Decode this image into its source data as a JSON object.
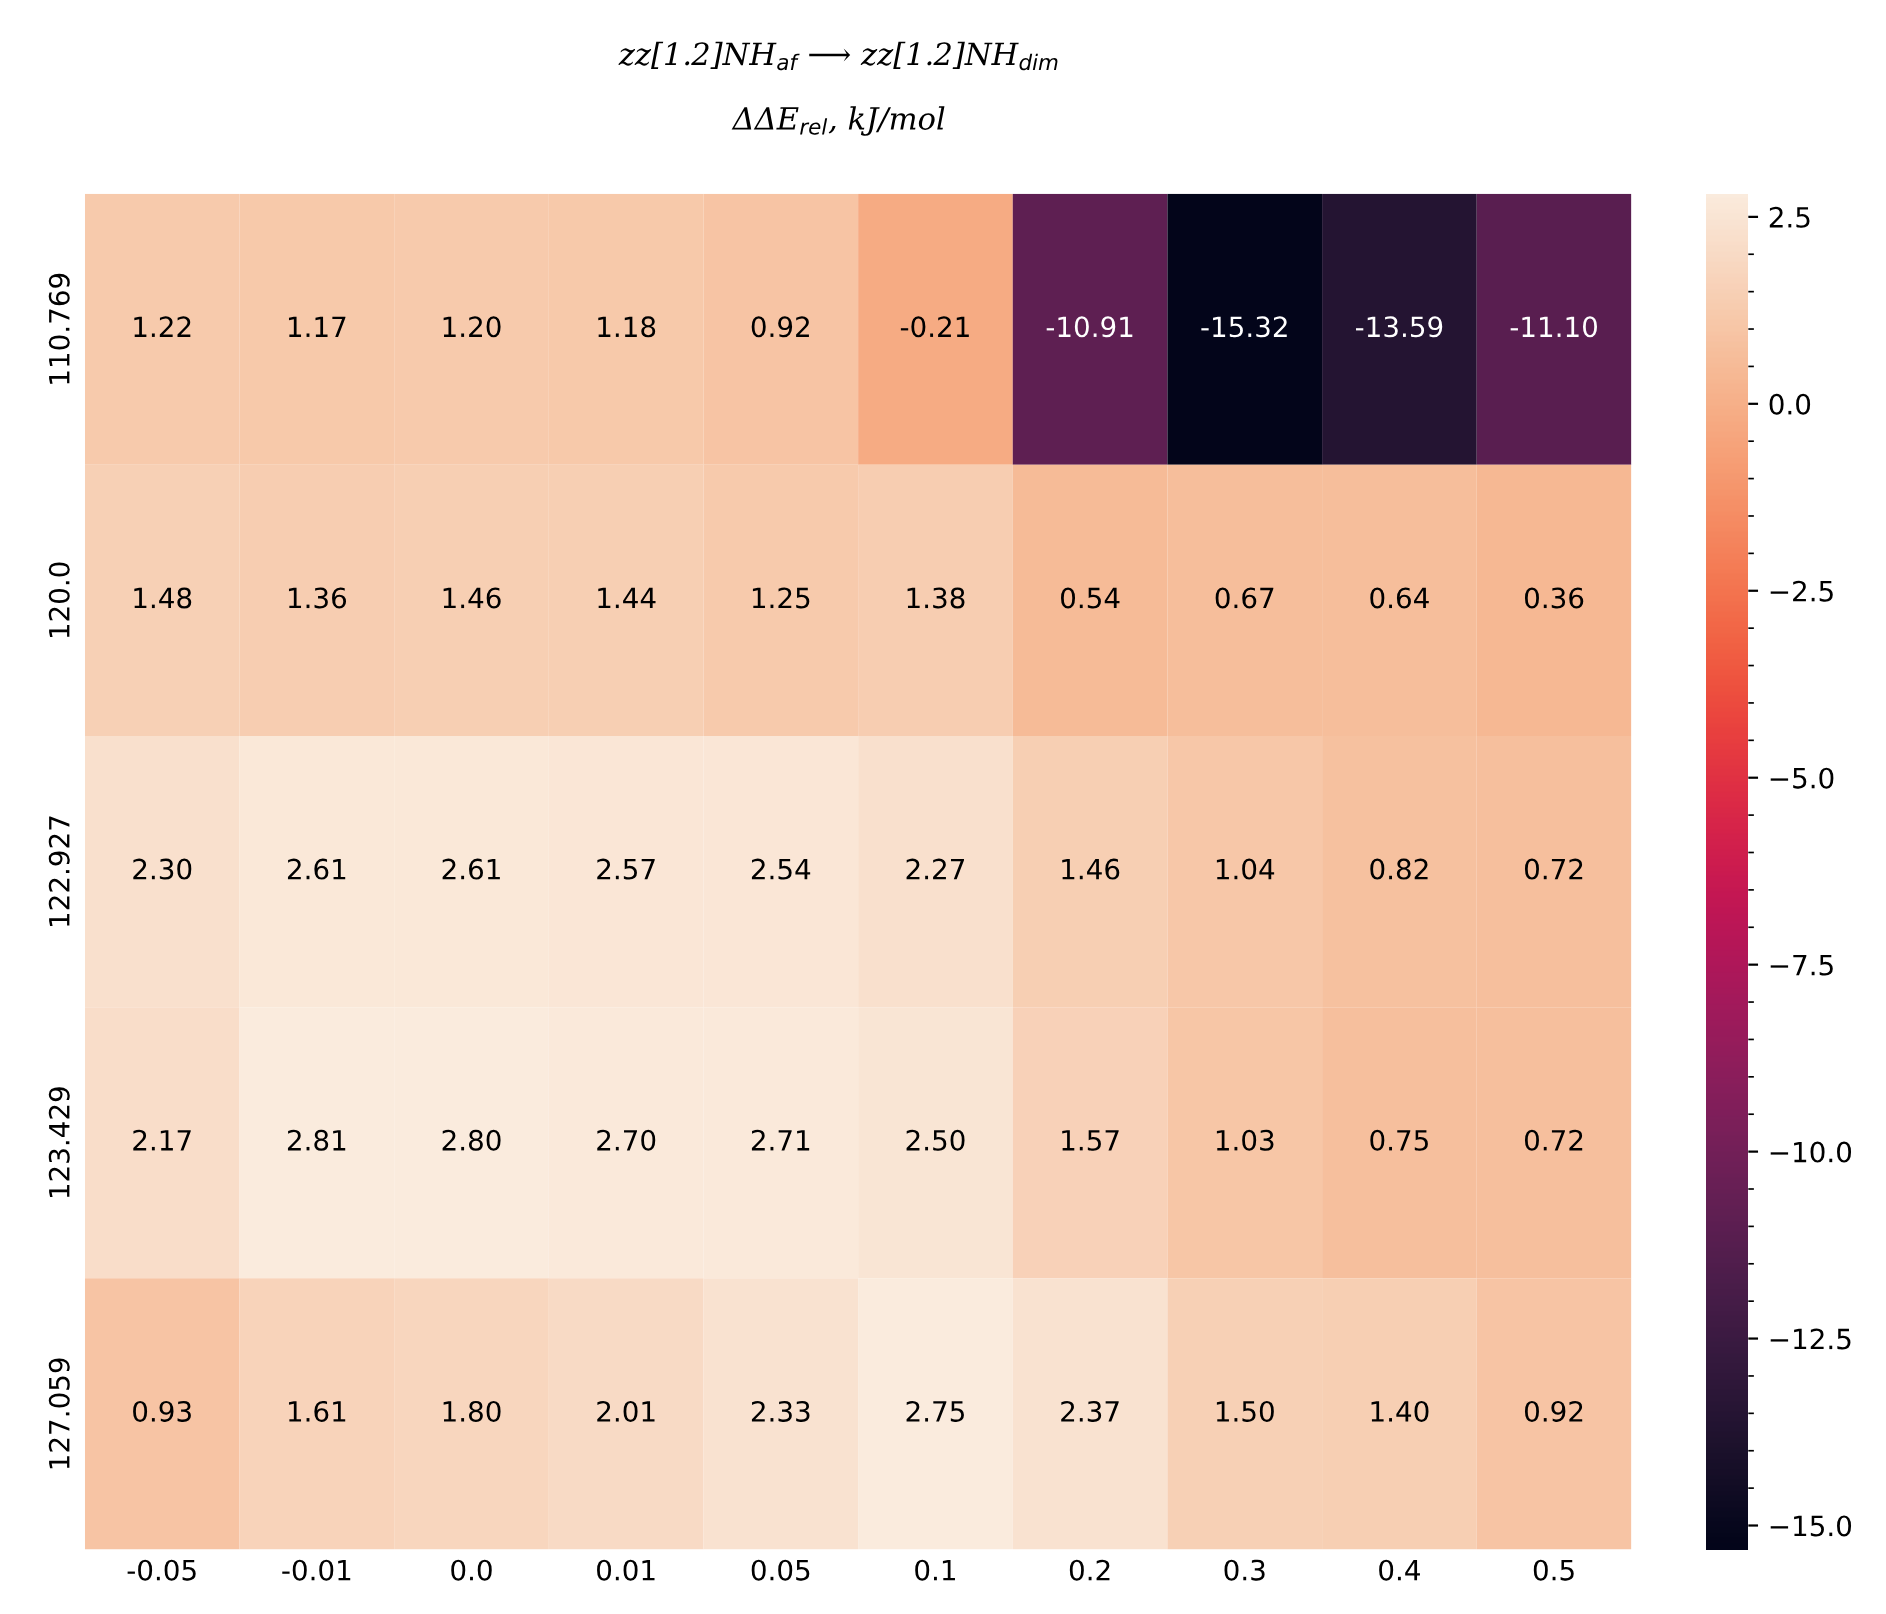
{
  "chart_data": {
    "type": "heatmap",
    "title": "zz[1.2]NH$_{af}$ ⟶ zz[1.2]NH$_{dim}$",
    "subtitle": "ΔΔE$_{rel}$, kJ/mol",
    "categories": [
      "-0.05",
      "-0.01",
      "0.0",
      "0.01",
      "0.05",
      "0.1",
      "0.2",
      "0.3",
      "0.4",
      "0.5"
    ],
    "y_categories": [
      "110.769",
      "120.0",
      "122.927",
      "123.429",
      "127.059"
    ],
    "cells": [
      [
        1.22,
        1.17,
        1.2,
        1.18,
        0.92,
        -0.21,
        -10.91,
        -15.32,
        -13.59,
        -11.1
      ],
      [
        1.48,
        1.36,
        1.46,
        1.44,
        1.25,
        1.38,
        0.54,
        0.67,
        0.64,
        0.36
      ],
      [
        2.3,
        2.61,
        2.61,
        2.57,
        2.54,
        2.27,
        1.46,
        1.04,
        0.82,
        0.72
      ],
      [
        2.17,
        2.81,
        2.8,
        2.7,
        2.71,
        2.5,
        1.57,
        1.03,
        0.75,
        0.72
      ],
      [
        0.93,
        1.61,
        1.8,
        2.01,
        2.33,
        2.75,
        2.37,
        1.5,
        1.4,
        0.92
      ]
    ],
    "cell_labels": [
      [
        "1.22",
        "1.17",
        "1.20",
        "1.18",
        "0.92",
        "-0.21",
        "-10.91",
        "-15.32",
        "-13.59",
        "-11.10"
      ],
      [
        "1.48",
        "1.36",
        "1.46",
        "1.44",
        "1.25",
        "1.38",
        "0.54",
        "0.67",
        "0.64",
        "0.36"
      ],
      [
        "2.30",
        "2.61",
        "2.61",
        "2.57",
        "2.54",
        "2.27",
        "1.46",
        "1.04",
        "0.82",
        "0.72"
      ],
      [
        "2.17",
        "2.81",
        "2.80",
        "2.70",
        "2.71",
        "2.50",
        "1.57",
        "1.03",
        "0.75",
        "0.72"
      ],
      [
        "0.93",
        "1.61",
        "1.80",
        "2.01",
        "2.33",
        "2.75",
        "2.37",
        "1.50",
        "1.40",
        "0.92"
      ]
    ],
    "clim": [
      -15.32,
      2.81
    ],
    "cticks": [
      2.5,
      {
        "value": 0,
        "label": "0.0"
      },
      {
        "value": -2.5,
        "label": "−2.5"
      },
      {
        "value": -5,
        "label": "−5.0"
      },
      {
        "value": -7.5,
        "label": "−7.5"
      },
      {
        "value": -10,
        "label": "−10.0"
      },
      {
        "value": -12.5,
        "label": "−12.5"
      },
      {
        "value": -15,
        "label": "−15.0"
      }
    ]
  }
}
